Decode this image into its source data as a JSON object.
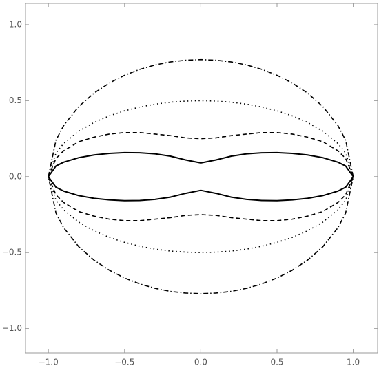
{
  "chart_data": {
    "type": "line",
    "x": [
      -1,
      -0.95,
      -0.9,
      -0.8,
      -0.7,
      -0.6,
      -0.5,
      -0.4,
      -0.3,
      -0.2,
      -0.1,
      0,
      0.1,
      0.2,
      0.3,
      0.4,
      0.5,
      0.6,
      0.7,
      0.8,
      0.9,
      0.95,
      1,
      0.95,
      0.9,
      0.8,
      0.7,
      0.6,
      0.5,
      0.4,
      0.3,
      0.2,
      0.1,
      0,
      -0.1,
      -0.2,
      -0.3,
      -0.4,
      -0.5,
      -0.6,
      -0.7,
      -0.8,
      -0.9,
      -0.95,
      -1
    ],
    "series": [
      {
        "color": "#000000",
        "style": "solid",
        "values": [
          0,
          0.07,
          0.095,
          0.125,
          0.143,
          0.153,
          0.158,
          0.157,
          0.15,
          0.135,
          0.11,
          0.09,
          0.11,
          0.135,
          0.15,
          0.157,
          0.158,
          0.153,
          0.143,
          0.125,
          0.095,
          0.07,
          0,
          -0.07,
          -0.095,
          -0.125,
          -0.143,
          -0.153,
          -0.158,
          -0.157,
          -0.15,
          -0.135,
          -0.11,
          -0.09,
          -0.11,
          -0.135,
          -0.15,
          -0.157,
          -0.158,
          -0.153,
          -0.143,
          -0.125,
          -0.095,
          -0.07,
          0
        ]
      },
      {
        "color": "#000000",
        "style": "dashed",
        "values": [
          0,
          0.12,
          0.17,
          0.23,
          0.26,
          0.28,
          0.29,
          0.29,
          0.28,
          0.27,
          0.255,
          0.25,
          0.255,
          0.27,
          0.28,
          0.29,
          0.29,
          0.28,
          0.26,
          0.23,
          0.17,
          0.12,
          0,
          -0.12,
          -0.17,
          -0.23,
          -0.26,
          -0.28,
          -0.29,
          -0.29,
          -0.28,
          -0.27,
          -0.255,
          -0.25,
          -0.255,
          -0.27,
          -0.28,
          -0.29,
          -0.29,
          -0.28,
          -0.26,
          -0.23,
          -0.17,
          -0.12,
          0
        ]
      },
      {
        "color": "#000000",
        "style": "dotted",
        "values": [
          0,
          0.156,
          0.218,
          0.3,
          0.357,
          0.4,
          0.433,
          0.458,
          0.477,
          0.49,
          0.497,
          0.5,
          0.497,
          0.49,
          0.477,
          0.458,
          0.433,
          0.4,
          0.357,
          0.3,
          0.218,
          0.156,
          0,
          -0.156,
          -0.218,
          -0.3,
          -0.357,
          -0.4,
          -0.433,
          -0.458,
          -0.477,
          -0.49,
          -0.497,
          -0.5,
          -0.497,
          -0.49,
          -0.477,
          -0.458,
          -0.433,
          -0.4,
          -0.357,
          -0.3,
          -0.218,
          -0.156,
          0
        ]
      },
      {
        "color": "#000000",
        "style": "dashdot",
        "values": [
          0,
          0.24,
          0.336,
          0.462,
          0.55,
          0.616,
          0.667,
          0.706,
          0.735,
          0.755,
          0.766,
          0.77,
          0.766,
          0.755,
          0.735,
          0.706,
          0.667,
          0.616,
          0.55,
          0.462,
          0.336,
          0.24,
          0,
          -0.24,
          -0.336,
          -0.462,
          -0.55,
          -0.616,
          -0.667,
          -0.706,
          -0.735,
          -0.755,
          -0.766,
          -0.77,
          -0.766,
          -0.755,
          -0.735,
          -0.706,
          -0.667,
          -0.616,
          -0.55,
          -0.462,
          -0.336,
          -0.24,
          0
        ]
      }
    ],
    "xlim": [
      -1.15,
      1.16
    ],
    "ylim": [
      -1.16,
      1.14
    ],
    "xticks": [
      {
        "value": -1,
        "label": "−1.0"
      },
      {
        "value": -0.5,
        "label": "−0.5"
      },
      {
        "value": 0,
        "label": "0.0"
      },
      {
        "value": 0.5,
        "label": "0.5"
      },
      {
        "value": 1,
        "label": "1.0"
      }
    ],
    "yticks": [
      {
        "value": -1,
        "label": "−1.0"
      },
      {
        "value": -0.5,
        "label": "−0.5"
      },
      {
        "value": 0,
        "label": "0.0"
      },
      {
        "value": 0.5,
        "label": "0.5"
      },
      {
        "value": 1,
        "label": "1.0"
      }
    ],
    "grid": false
  }
}
